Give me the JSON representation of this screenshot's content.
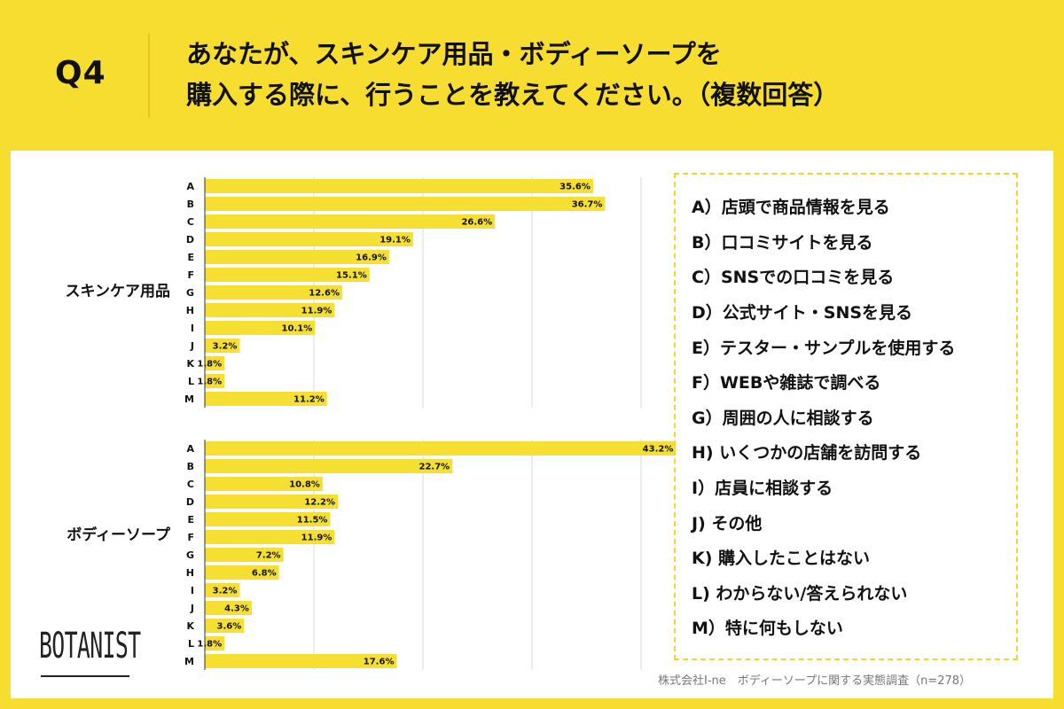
{
  "header": {
    "question_label": "Q4",
    "title_line1": "あなたが、スキンケア用品・ボディーソープを",
    "title_line2": "購入する際に、行うことを教えてください。（複数回答）"
  },
  "chart_data": [
    {
      "type": "bar",
      "orientation": "horizontal",
      "group_label": "スキンケア用品",
      "categories": [
        "A",
        "B",
        "C",
        "D",
        "E",
        "F",
        "G",
        "H",
        "I",
        "J",
        "K",
        "L",
        "M"
      ],
      "values": [
        35.6,
        36.7,
        26.6,
        19.1,
        16.9,
        15.1,
        12.6,
        11.9,
        10.1,
        3.2,
        1.8,
        1.8,
        11.2
      ],
      "value_labels": [
        "35.6%",
        "36.7%",
        "26.6%",
        "19.1%",
        "16.9%",
        "15.1%",
        "12.6%",
        "11.9%",
        "10.1%",
        "3.2%",
        "1.8%",
        "1.8%",
        "11.2%"
      ],
      "xlim": [
        0,
        40
      ],
      "grid": true
    },
    {
      "type": "bar",
      "orientation": "horizontal",
      "group_label": "ボディーソープ",
      "categories": [
        "A",
        "B",
        "C",
        "D",
        "E",
        "F",
        "G",
        "H",
        "I",
        "J",
        "K",
        "L",
        "M"
      ],
      "values": [
        43.2,
        22.7,
        10.8,
        12.2,
        11.5,
        11.9,
        7.2,
        6.8,
        3.2,
        4.3,
        3.6,
        1.8,
        17.6
      ],
      "value_labels": [
        "43.2%",
        "22.7%",
        "10.8%",
        "12.2%",
        "11.5%",
        "11.9%",
        "7.2%",
        "6.8%",
        "3.2%",
        "4.3%",
        "3.6%",
        "1.8%",
        "17.6%"
      ],
      "xlim": [
        0,
        40
      ],
      "grid": true
    }
  ],
  "legend": {
    "items": [
      "A）店頭で商品情報を見る",
      "B）口コミサイトを見る",
      "C）SNSでの口コミを見る",
      "D）公式サイト・SNSを見る",
      "E）テスター・サンプルを使用する",
      "F）WEBや雑誌で調べる",
      "G）周囲の人に相談する",
      "H) いくつかの店舗を訪問する",
      "I）店員に相談する",
      "J) その他",
      "K) 購入したことはない",
      "L) わからない/答えられない",
      "M）特に何もしない"
    ]
  },
  "brand": {
    "logo": "BOTANIST"
  },
  "footer": {
    "note": "株式会社I-ne　ボディーソープに関する実態調査（n=278）"
  },
  "colors": {
    "bar": "#f5df33",
    "background": "#f7dd2f",
    "panel": "#ffffff",
    "grid": "#d8d8d8",
    "axis": "#333333"
  }
}
